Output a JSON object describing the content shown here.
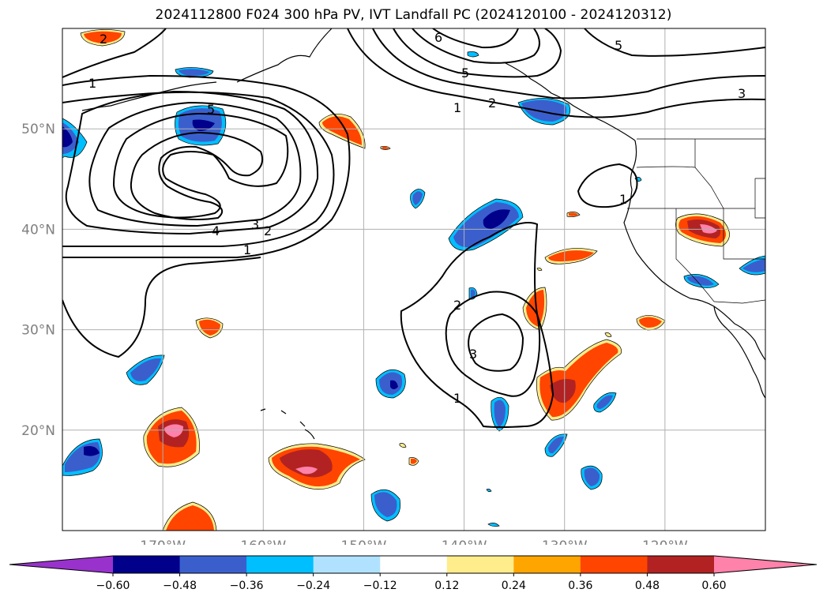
{
  "title": "2024112800 F024 300 hPa PV, IVT Landfall PC (2024120100 - 2024120312)",
  "map": {
    "lon_range": [
      -180,
      -110
    ],
    "lat_range": [
      10,
      60
    ],
    "lon_ticks": [
      {
        "value": -170,
        "label": "170°W"
      },
      {
        "value": -160,
        "label": "160°W"
      },
      {
        "value": -150,
        "label": "150°W"
      },
      {
        "value": -140,
        "label": "140°W"
      },
      {
        "value": -130,
        "label": "130°W"
      },
      {
        "value": -120,
        "label": "120°W"
      }
    ],
    "lat_ticks": [
      {
        "value": 20,
        "label": "20°N"
      },
      {
        "value": 30,
        "label": "30°N"
      },
      {
        "value": 40,
        "label": "40°N"
      },
      {
        "value": 50,
        "label": "50°N"
      }
    ],
    "grid": true,
    "gridline_color": "#b0b0b0"
  },
  "colorbar": {
    "levels": [
      "-0.60",
      "-0.48",
      "-0.36",
      "-0.24",
      "-0.12",
      "0.12",
      "0.24",
      "0.36",
      "0.48",
      "0.60"
    ],
    "colors": [
      "#9932cc",
      "#00008b",
      "#3a5fcd",
      "#00bfff",
      "#b0e2ff",
      "#ffffff",
      "#ffec8b",
      "#ffa500",
      "#ff4500",
      "#b22222",
      "#ff82ab"
    ],
    "extend": "both"
  },
  "contour_labels": [
    "1",
    "2",
    "3",
    "4",
    "5",
    "6"
  ]
}
